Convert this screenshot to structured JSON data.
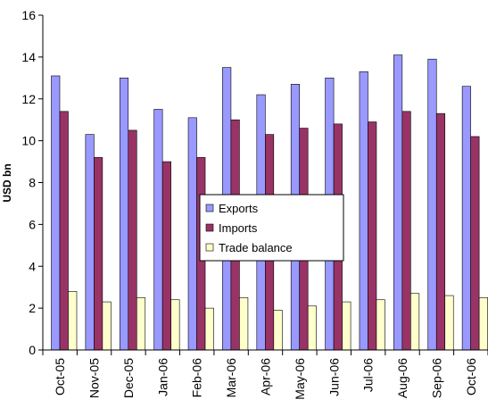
{
  "chart_data": {
    "type": "bar",
    "ylabel": "USD bn",
    "xlabel": "",
    "ylim": [
      0,
      16
    ],
    "yticks": [
      0,
      2,
      4,
      6,
      8,
      10,
      12,
      14,
      16
    ],
    "grid": false,
    "legend_position": "center",
    "categories": [
      "Oct-05",
      "Nov-05",
      "Dec-05",
      "Jan-06",
      "Feb-06",
      "Mar-06",
      "Apr-06",
      "May-06",
      "Jun-06",
      "Jul-06",
      "Aug-06",
      "Sep-06",
      "Oct-06"
    ],
    "series": [
      {
        "name": "Exports",
        "color": "#9999ff",
        "values": [
          13.1,
          10.3,
          13.0,
          11.5,
          11.1,
          13.5,
          12.2,
          12.7,
          13.0,
          13.3,
          14.1,
          13.9,
          12.6
        ]
      },
      {
        "name": "Imports",
        "color": "#993366",
        "values": [
          11.4,
          9.2,
          10.5,
          9.0,
          9.2,
          11.0,
          10.3,
          10.6,
          10.8,
          10.9,
          11.4,
          11.3,
          10.2
        ]
      },
      {
        "name": "Trade balance",
        "color": "#ffffcc",
        "values": [
          2.8,
          2.3,
          2.5,
          2.4,
          2.0,
          2.5,
          1.9,
          2.1,
          2.3,
          2.4,
          2.7,
          2.6,
          2.5
        ]
      }
    ]
  }
}
